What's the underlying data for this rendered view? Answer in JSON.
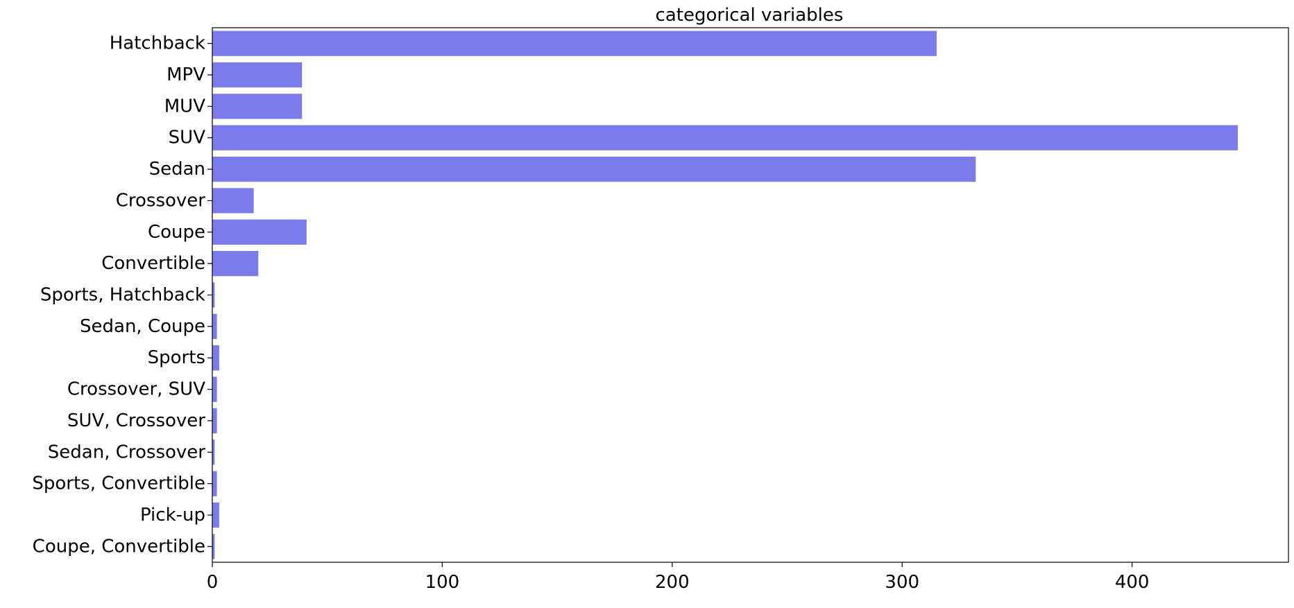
{
  "chart_data": {
    "type": "bar",
    "orientation": "horizontal",
    "title": "categorical variables",
    "xlabel": "",
    "ylabel": "",
    "categories": [
      "Hatchback",
      "MPV",
      "MUV",
      "SUV",
      "Sedan",
      "Crossover",
      "Coupe",
      "Convertible",
      "Sports, Hatchback",
      "Sedan, Coupe",
      "Sports",
      "Crossover, SUV",
      "SUV, Crossover",
      "Sedan, Crossover",
      "Sports, Convertible",
      "Pick-up",
      "Coupe, Convertible"
    ],
    "values": [
      315,
      39,
      39,
      446,
      332,
      18,
      41,
      20,
      1,
      2,
      3,
      2,
      2,
      1,
      2,
      3,
      1
    ],
    "xlim": [
      0,
      468
    ],
    "xticks": [
      0,
      100,
      200,
      300,
      400
    ],
    "grid": false,
    "bar_color": "#7b7bec"
  }
}
